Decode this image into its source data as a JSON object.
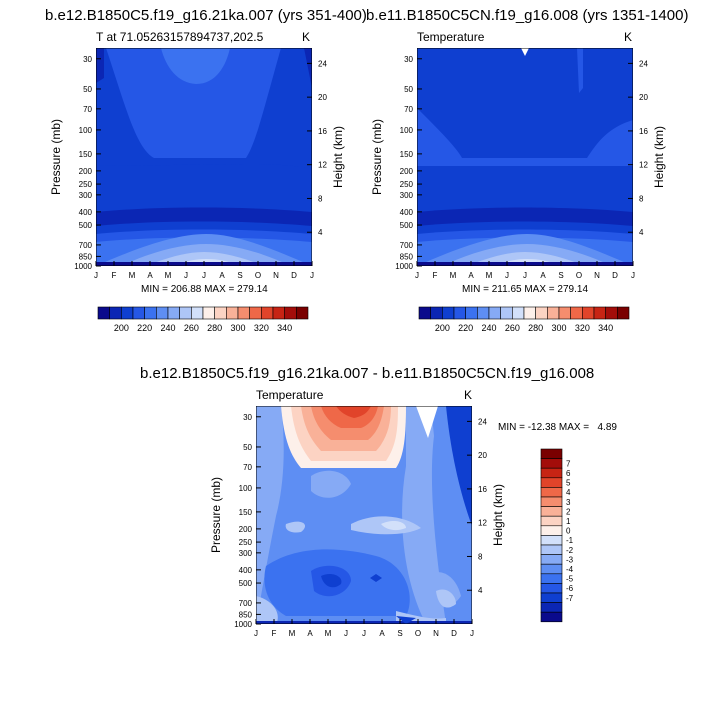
{
  "palette": [
    "#0a0a8c",
    "#0b26b4",
    "#0f3fd0",
    "#2557e6",
    "#3b72f0",
    "#5e8ef3",
    "#86aaf5",
    "#aec6f7",
    "#d2e0fa",
    "#fdf0ea",
    "#fcd3c3",
    "#f9b198",
    "#f58d6e",
    "#ef6848",
    "#e1442a",
    "#c72414",
    "#a30d0a",
    "#7a0000"
  ],
  "top_left": {
    "title": "b.e12.B1850C5.f19_g16.21ka.007 (yrs 351-400)",
    "subtitle_left": "T at 71.05263157894737,202.5",
    "subtitle_right": "K",
    "stats": "MIN = 206.88 MAX = 279.14"
  },
  "top_right": {
    "title": "b.e11.B1850C5CN.f19_g16.008 (yrs 1351-1400)",
    "subtitle_left": "Temperature",
    "subtitle_right": "K",
    "stats": "MIN = 211.65 MAX = 279.14"
  },
  "bottom": {
    "title": "b.e12.B1850C5.f19_g16.21ka.007 - b.e11.B1850C5CN.f19_g16.008",
    "subtitle_left": "Temperature",
    "subtitle_right": "K",
    "stats": "MIN = -12.38 MAX =   4.89"
  },
  "chart_data": [
    {
      "type": "heatmap",
      "title": "b.e12.B1850C5.f19_g16.21ka.007 (yrs 351-400)",
      "subtitle": "T at 71.05263157894737,202.5",
      "units": "K",
      "xlabel": "",
      "ylabel": "Pressure (mb)",
      "ylabel_right": "Height (km)",
      "x_ticks": [
        "J",
        "F",
        "M",
        "A",
        "M",
        "J",
        "J",
        "A",
        "S",
        "O",
        "N",
        "D",
        "J"
      ],
      "y_ticks": [
        "30",
        "50",
        "70",
        "100",
        "150",
        "200",
        "250",
        "300",
        "400",
        "500",
        "700",
        "850",
        "1000"
      ],
      "y_ticks_right": [
        "24",
        "20",
        "16",
        "12",
        "8",
        "4"
      ],
      "ylim": [
        1000,
        25
      ],
      "colorbar_levels": [
        200,
        220,
        240,
        260,
        280,
        300,
        320,
        340
      ],
      "min": 206.88,
      "max": 279.14
    },
    {
      "type": "heatmap",
      "title": "b.e11.B1850C5CN.f19_g16.008 (yrs 1351-1400)",
      "subtitle": "Temperature",
      "units": "K",
      "xlabel": "",
      "ylabel": "Pressure (mb)",
      "ylabel_right": "Height (km)",
      "x_ticks": [
        "J",
        "F",
        "M",
        "A",
        "M",
        "J",
        "J",
        "A",
        "S",
        "O",
        "N",
        "D",
        "J"
      ],
      "y_ticks": [
        "30",
        "50",
        "70",
        "100",
        "150",
        "200",
        "250",
        "300",
        "400",
        "500",
        "700",
        "850",
        "1000"
      ],
      "y_ticks_right": [
        "24",
        "20",
        "16",
        "12",
        "8",
        "4"
      ],
      "ylim": [
        1000,
        25
      ],
      "colorbar_levels": [
        200,
        220,
        240,
        260,
        280,
        300,
        320,
        340
      ],
      "min": 211.65,
      "max": 279.14
    },
    {
      "type": "heatmap",
      "title": "b.e12.B1850C5.f19_g16.21ka.007 - b.e11.B1850C5CN.f19_g16.008",
      "subtitle": "Temperature",
      "units": "K",
      "xlabel": "",
      "ylabel": "Pressure (mb)",
      "ylabel_right": "Height (km)",
      "x_ticks": [
        "J",
        "F",
        "M",
        "A",
        "M",
        "J",
        "J",
        "A",
        "S",
        "O",
        "N",
        "D",
        "J"
      ],
      "y_ticks": [
        "30",
        "50",
        "70",
        "100",
        "150",
        "200",
        "250",
        "300",
        "400",
        "500",
        "700",
        "850",
        "1000"
      ],
      "y_ticks_right": [
        "24",
        "20",
        "16",
        "12",
        "8",
        "4"
      ],
      "ylim": [
        1000,
        25
      ],
      "colorbar_levels": [
        7,
        6,
        5,
        4,
        3,
        2,
        1,
        0,
        -1,
        -2,
        -3,
        -4,
        -5,
        -6,
        -7
      ],
      "min": -12.38,
      "max": 4.89
    }
  ]
}
